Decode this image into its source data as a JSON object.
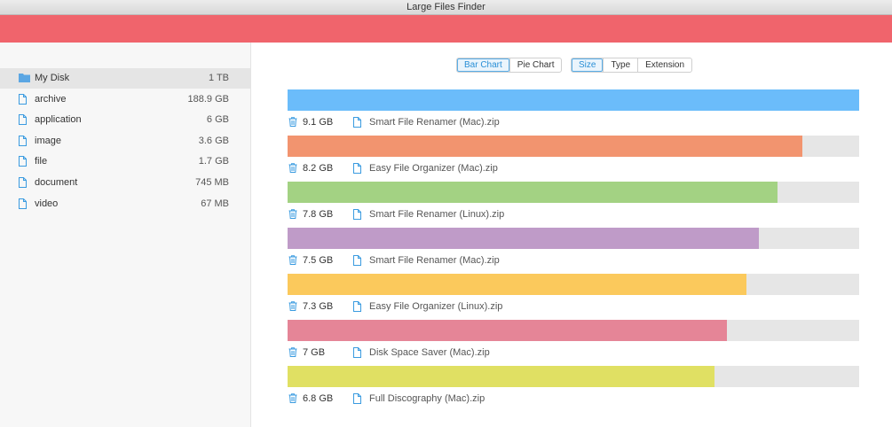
{
  "window_title": "Large Files Finder",
  "sidebar": {
    "selected": 0,
    "items": [
      {
        "name": "My Disk",
        "size": "1 TB",
        "icon": "folder"
      },
      {
        "name": "archive",
        "size": "188.9 GB",
        "icon": "file"
      },
      {
        "name": "application",
        "size": "6 GB",
        "icon": "file"
      },
      {
        "name": "image",
        "size": "3.6 GB",
        "icon": "file"
      },
      {
        "name": "file",
        "size": "1.7 GB",
        "icon": "file"
      },
      {
        "name": "document",
        "size": "745 MB",
        "icon": "file"
      },
      {
        "name": "video",
        "size": "67 MB",
        "icon": "file"
      }
    ]
  },
  "view_tabs": {
    "selected": 0,
    "labels": [
      "Bar Chart",
      "Pie Chart"
    ]
  },
  "sort_tabs": {
    "selected": 0,
    "labels": [
      "Size",
      "Type",
      "Extension"
    ]
  },
  "chart_data": {
    "type": "bar",
    "orientation": "horizontal",
    "categories": [
      "Smart File Renamer (Mac).zip",
      "Easy File Organizer (Mac).zip",
      "Smart File Renamer (Linux).zip",
      "Smart File Renamer (Mac).zip",
      "Easy File Organizer (Linux).zip",
      "Disk Space Saver (Mac).zip",
      "Full Discography (Mac).zip"
    ],
    "values": [
      9.1,
      8.2,
      7.8,
      7.5,
      7.3,
      7,
      6.8
    ],
    "value_labels": [
      "9.1 GB",
      "8.2 GB",
      "7.8 GB",
      "7.5 GB",
      "7.3 GB",
      "7 GB",
      "6.8 GB"
    ],
    "colors": [
      "#6bbcfa",
      "#f2946f",
      "#a3d283",
      "#bf9bc8",
      "#fbc95c",
      "#e58597",
      "#e0e063"
    ],
    "xlim": [
      0,
      9.1
    ]
  }
}
